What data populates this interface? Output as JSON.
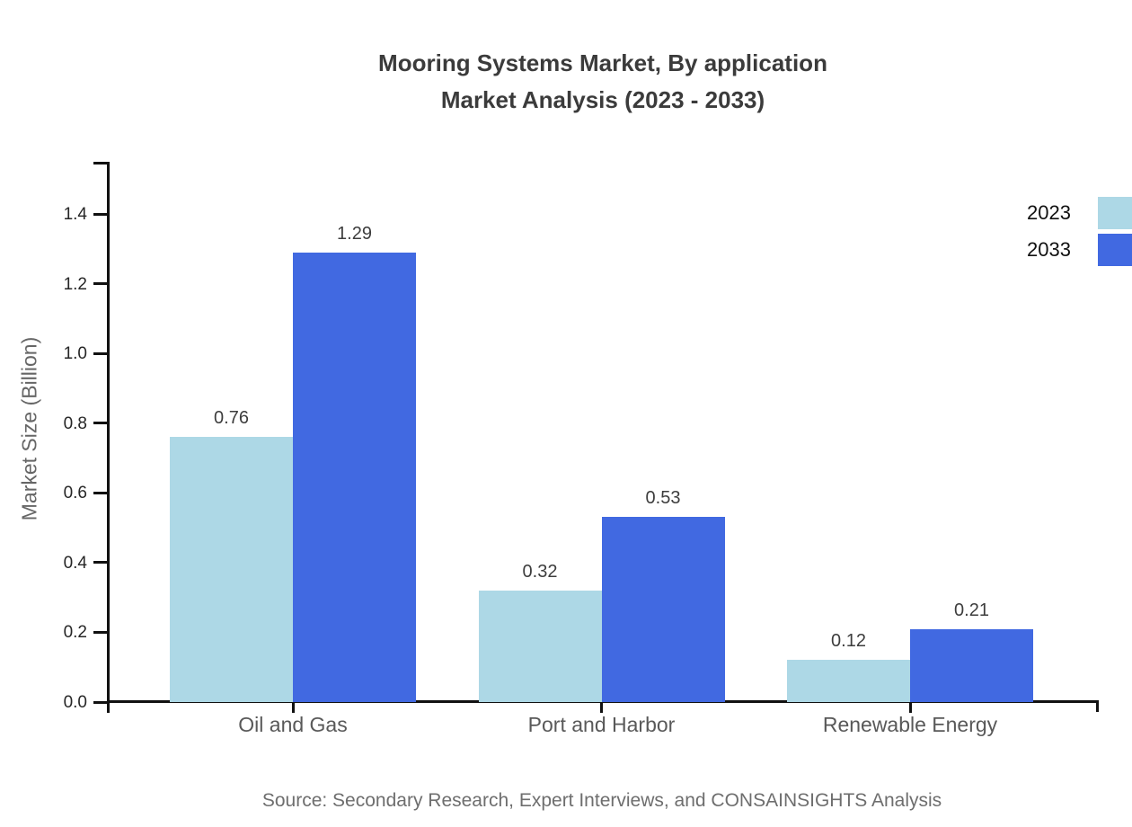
{
  "title": {
    "line1": "Mooring Systems Market, By application",
    "line2": "Market Analysis (2023 - 2033)"
  },
  "source": "Source: Secondary Research, Expert Interviews, and CONSAINSIGHTS Analysis",
  "chart_data": {
    "type": "bar",
    "categories": [
      "Oil and Gas",
      "Port and Harbor",
      "Renewable Energy"
    ],
    "series": [
      {
        "name": "2023",
        "color": "#ADD8E6",
        "values": [
          0.76,
          0.32,
          0.12
        ]
      },
      {
        "name": "2033",
        "color": "#4169E1",
        "values": [
          1.29,
          0.53,
          0.21
        ]
      }
    ],
    "title": "Mooring Systems Market, By application Market Analysis (2023 - 2033)",
    "xlabel": "",
    "ylabel": "Market Size (Billion)",
    "ylim": [
      0,
      1.55
    ],
    "yticks": [
      0.0,
      0.2,
      0.4,
      0.6,
      0.8,
      1.0,
      1.2,
      1.4
    ],
    "grid": false,
    "legend_position": "top-right",
    "value_labels": true,
    "value_label_format": "2dp",
    "tick_label_format": "1dp"
  }
}
